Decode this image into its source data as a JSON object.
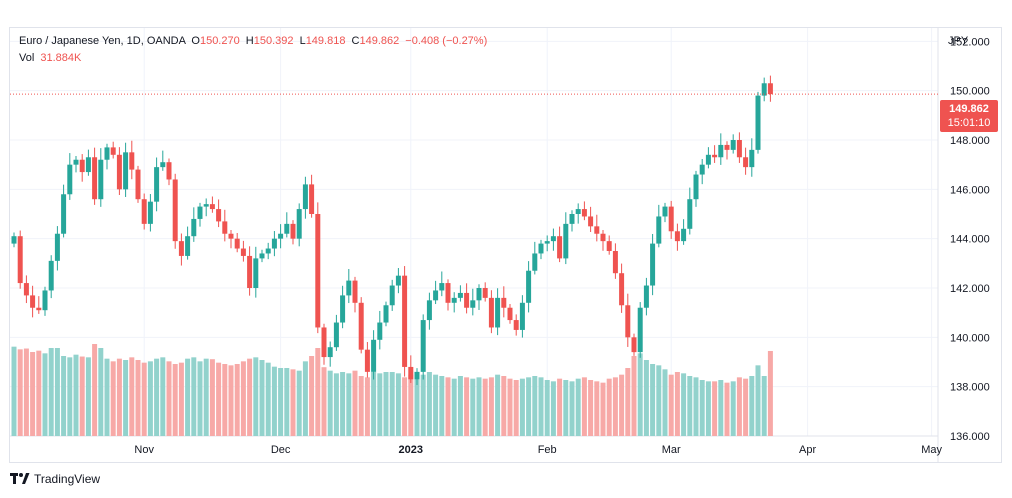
{
  "header": {
    "symbol": "Euro / Japanese Yen, 1D, OANDA",
    "o_label": "O",
    "o_value": "150.270",
    "h_label": "H",
    "h_value": "150.392",
    "l_label": "L",
    "l_value": "149.818",
    "c_label": "C",
    "c_value": "149.862",
    "change": "−0.408 (−0.27%)",
    "vol_label": "Vol",
    "vol_value": "31.884K"
  },
  "axis": {
    "currency": "JPY"
  },
  "price_tag": {
    "price": "149.862",
    "countdown": "15:01:10"
  },
  "brand": {
    "name": "TradingView"
  },
  "colors": {
    "up": "#26a69a",
    "down": "#ef5350",
    "up_vol": "#92d2cc",
    "down_vol": "#f7a9a7",
    "grid": "#f0f3fa"
  },
  "chart_data": {
    "type": "candlestick",
    "symbol": "EUR/JPY",
    "interval": "1D",
    "ylim": [
      136,
      152.5
    ],
    "y_ticks": [
      "152.000",
      "150.000",
      "148.000",
      "146.000",
      "144.000",
      "142.000",
      "140.000",
      "138.000",
      "136.000"
    ],
    "y_tick_values": [
      152,
      150,
      148,
      146,
      144,
      142,
      140,
      138,
      136
    ],
    "x_ticks": [
      {
        "label": "Nov",
        "index": 21
      },
      {
        "label": "Dec",
        "index": 43
      },
      {
        "label": "2023",
        "index": 64
      },
      {
        "label": "Feb",
        "index": 86
      },
      {
        "label": "Mar",
        "index": 106
      },
      {
        "label": "Apr",
        "index": 128
      },
      {
        "label": "May",
        "index": 148
      }
    ],
    "last_price": 149.862,
    "closes": [
      144.1,
      142.2,
      141.7,
      141.2,
      141.1,
      141.9,
      143.1,
      144.2,
      145.8,
      147.0,
      147.2,
      146.7,
      147.3,
      145.6,
      147.2,
      147.7,
      147.4,
      146.0,
      147.5,
      146.8,
      145.6,
      144.6,
      145.5,
      146.9,
      147.1,
      146.4,
      143.9,
      143.3,
      144.1,
      144.8,
      145.3,
      145.4,
      145.2,
      144.7,
      144.2,
      144.0,
      143.6,
      143.3,
      142.0,
      143.2,
      143.4,
      143.6,
      144.0,
      144.2,
      144.6,
      144.0,
      145.2,
      146.2,
      145.0,
      140.4,
      139.2,
      139.6,
      140.6,
      141.7,
      142.3,
      141.4,
      139.5,
      138.6,
      139.9,
      140.6,
      141.3,
      142.1,
      142.5,
      138.8,
      138.3,
      138.6,
      140.7,
      141.5,
      141.9,
      142.2,
      141.4,
      141.6,
      141.8,
      141.2,
      141.5,
      142.0,
      141.6,
      140.4,
      141.6,
      141.2,
      140.7,
      140.3,
      141.4,
      142.7,
      143.4,
      143.8,
      143.9,
      144.1,
      143.2,
      144.6,
      145.0,
      145.2,
      144.9,
      144.5,
      144.2,
      143.9,
      143.5,
      142.6,
      141.3,
      140.0,
      139.4,
      141.2,
      142.1,
      143.8,
      144.9,
      145.3,
      144.3,
      143.9,
      144.4,
      145.6,
      146.6,
      147.0,
      147.4,
      147.3,
      147.8,
      147.6,
      148.0,
      147.3,
      146.9,
      147.6,
      149.8,
      150.3,
      149.86
    ],
    "volumes_k": [
      33.5,
      32.5,
      32.8,
      31.5,
      32.0,
      31.0,
      33.0,
      33.0,
      30.0,
      29.5,
      30.5,
      29.8,
      29.5,
      34.5,
      33.0,
      29.0,
      28.0,
      29.0,
      28.5,
      29.5,
      28.5,
      27.5,
      28.0,
      29.0,
      29.5,
      28.0,
      27.0,
      27.5,
      29.0,
      29.5,
      28.0,
      29.0,
      28.8,
      27.5,
      27.0,
      26.5,
      27.0,
      28.0,
      29.0,
      29.5,
      28.5,
      27.5,
      26.0,
      25.5,
      25.5,
      25.0,
      24.5,
      28.0,
      30.0,
      33.0,
      25.8,
      24.5,
      23.5,
      24.0,
      23.5,
      24.5,
      22.5,
      22.0,
      24.0,
      23.5,
      24.0,
      24.0,
      23.5,
      22.0,
      23.0,
      24.0,
      23.0,
      24.0,
      23.0,
      22.5,
      22.0,
      21.5,
      22.5,
      22.0,
      21.5,
      22.0,
      21.5,
      22.0,
      23.0,
      22.5,
      21.5,
      21.0,
      21.5,
      22.0,
      22.5,
      22.0,
      21.0,
      20.5,
      21.5,
      21.0,
      20.5,
      21.5,
      22.0,
      21.0,
      20.5,
      20.0,
      21.5,
      22.0,
      23.0,
      25.5,
      30.0,
      31.0,
      28.5,
      27.0,
      26.5,
      25.0,
      23.0,
      24.0,
      23.5,
      22.5,
      22.0,
      21.0,
      20.5,
      20.5,
      21.0,
      20.0,
      20.5,
      22.0,
      21.5,
      22.5,
      26.5,
      22.5,
      31.884
    ]
  }
}
